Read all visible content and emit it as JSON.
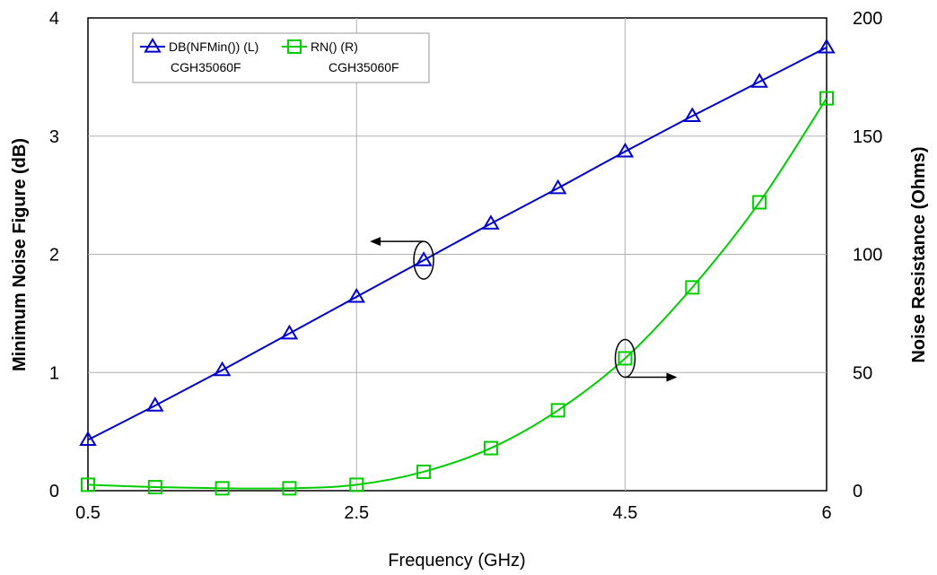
{
  "chart_data": {
    "type": "line",
    "title": "",
    "xlabel": "Frequency (GHz)",
    "ylabel_left": "Minimum Noise Figure (dB)",
    "ylabel_right": "Noise Resistance (Ohms)",
    "xlim": [
      0.5,
      6
    ],
    "ylim_left": [
      0,
      4
    ],
    "ylim_right": [
      0,
      200
    ],
    "x_ticks": [
      0.5,
      2.5,
      4.5,
      6
    ],
    "x_tick_labels": [
      "0.5",
      "2.5",
      "4.5",
      "6"
    ],
    "y_left_ticks": [
      0,
      1,
      2,
      3,
      4
    ],
    "y_left_tick_labels": [
      "0",
      "1",
      "2",
      "3",
      "4"
    ],
    "y_right_ticks": [
      0,
      50,
      100,
      150,
      200
    ],
    "y_right_tick_labels": [
      "0",
      "50",
      "100",
      "150",
      "200"
    ],
    "x_gridlines": [
      2.5,
      4.5
    ],
    "y_gridlines": [
      1,
      2,
      3
    ],
    "legend_placement": "top-left",
    "series": [
      {
        "name": "DB(NFMin()) (L)",
        "sublabel": "CGH35060F",
        "axis": "left",
        "color": "#0000cc",
        "marker": "triangle",
        "x": [
          0.5,
          1.0,
          1.5,
          2.0,
          2.5,
          3.0,
          3.5,
          4.0,
          4.5,
          5.0,
          5.5,
          6.0
        ],
        "values": [
          0.43,
          0.72,
          1.02,
          1.33,
          1.64,
          1.95,
          2.26,
          2.56,
          2.87,
          3.17,
          3.46,
          3.75
        ]
      },
      {
        "name": "RN() (R)",
        "sublabel": "CGH35060F",
        "axis": "right",
        "color": "#00cc00",
        "marker": "square",
        "x": [
          0.5,
          1.0,
          1.5,
          2.0,
          2.5,
          3.0,
          3.5,
          4.0,
          4.5,
          5.0,
          5.5,
          6.0
        ],
        "values": [
          2.5,
          1.5,
          1,
          1,
          2.5,
          8,
          18,
          34,
          56,
          86,
          122,
          166
        ]
      }
    ],
    "annotations": [
      {
        "target": "left",
        "at_x": 3.0,
        "at_y_left": 1.95,
        "direction": "left"
      },
      {
        "target": "right",
        "at_x": 4.5,
        "at_y_right": 56,
        "direction": "right"
      }
    ]
  }
}
